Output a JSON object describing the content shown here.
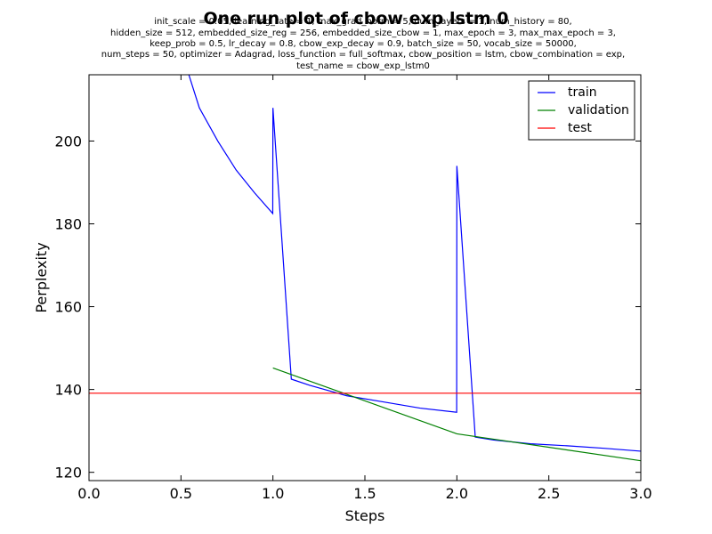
{
  "chart_data": {
    "type": "line",
    "title": "One run plot of cbow exp lstm 0",
    "subtitle_lines": [
      "init_scale = 0.05, learning_rate = 1, max_grad_norm = 5, num_layers = 1, num_history = 80,",
      "hidden_size = 512, embedded_size_reg = 256, embedded_size_cbow = 1, max_epoch = 3, max_max_epoch = 3,",
      "keep_prob = 0.5, lr_decay = 0.8, cbow_exp_decay = 0.9, batch_size = 50, vocab_size = 50000,",
      "num_steps = 50, optimizer = Adagrad, loss_function = full_softmax, cbow_position = lstm, cbow_combination = exp,",
      "test_name = cbow_exp_lstm0"
    ],
    "xlabel": "Steps",
    "ylabel": "Perplexity",
    "xlim": [
      0.0,
      3.0
    ],
    "ylim": [
      118,
      216
    ],
    "xticks": [
      "0.0",
      "0.5",
      "1.0",
      "1.5",
      "2.0",
      "2.5",
      "3.0"
    ],
    "yticks": [
      "120",
      "140",
      "160",
      "180",
      "200"
    ],
    "grid": false,
    "legend_position": "top-right",
    "series": [
      {
        "name": "train",
        "color": "#0000ff",
        "x": [
          0.5,
          0.6,
          0.7,
          0.8,
          0.9,
          0.999,
          1.0,
          1.1,
          1.2,
          1.4,
          1.6,
          1.8,
          1.999,
          2.0,
          2.1,
          2.2,
          2.4,
          2.6,
          2.8,
          3.0
        ],
        "y": [
          222,
          208,
          200,
          193,
          187.5,
          182.5,
          208,
          142.5,
          141,
          138.5,
          137,
          135.5,
          134.5,
          194,
          128.5,
          127.8,
          126.9,
          126.4,
          125.8,
          125.1
        ]
      },
      {
        "name": "validation",
        "color": "#008000",
        "x": [
          1.0,
          2.0,
          3.0
        ],
        "y": [
          145.2,
          129.3,
          122.8
        ]
      },
      {
        "name": "test",
        "color": "#ff0000",
        "x": [
          0.0,
          3.0
        ],
        "y": [
          139.1,
          139.1
        ]
      }
    ]
  }
}
